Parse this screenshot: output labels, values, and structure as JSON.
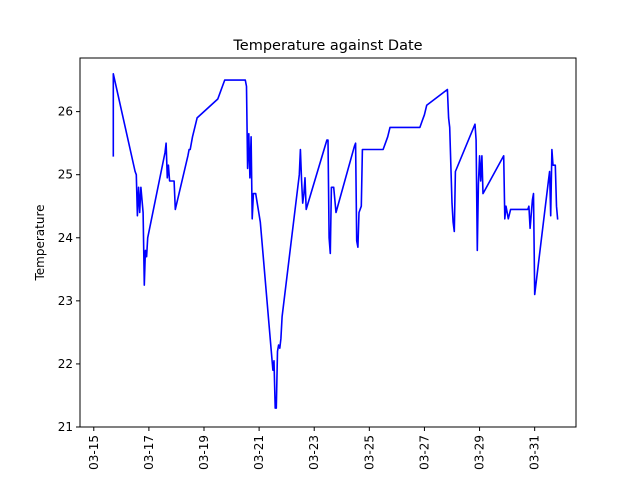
{
  "chart_data": {
    "type": "line",
    "title": "Temperature against Date",
    "xlabel": "",
    "ylabel": "Temperature",
    "x_tick_labels": [
      "03-15",
      "03-17",
      "03-19",
      "03-21",
      "03-23",
      "03-25",
      "03-27",
      "03-29",
      "03-31"
    ],
    "y_tick_labels": [
      "21",
      "22",
      "23",
      "24",
      "25",
      "26"
    ],
    "x_range": [
      "03-14 12:00",
      "04-01 12:00"
    ],
    "ylim": [
      21,
      26.85
    ],
    "grid": false,
    "line_color": "#0000ff",
    "series": [
      {
        "name": "",
        "points": [
          [
            "03-15 17:00",
            25.3
          ],
          [
            "03-15 17:00",
            26.6
          ],
          [
            "03-16 12:00",
            25.05
          ],
          [
            "03-16 13:00",
            25.0
          ],
          [
            "03-16 14:00",
            24.35
          ],
          [
            "03-16 15:00",
            24.8
          ],
          [
            "03-16 16:00",
            24.4
          ],
          [
            "03-16 17:00",
            24.8
          ],
          [
            "03-16 19:00",
            24.4
          ],
          [
            "03-16 20:00",
            23.25
          ],
          [
            "03-16 21:00",
            23.8
          ],
          [
            "03-16 22:00",
            23.7
          ],
          [
            "03-16 23:00",
            24.0
          ],
          [
            "03-17 14:00",
            25.35
          ],
          [
            "03-17 15:00",
            25.5
          ],
          [
            "03-17 16:00",
            24.95
          ],
          [
            "03-17 17:00",
            25.15
          ],
          [
            "03-17 18:00",
            24.9
          ],
          [
            "03-17 22:00",
            24.9
          ],
          [
            "03-17 23:00",
            24.45
          ],
          [
            "03-18 10:00",
            25.3
          ],
          [
            "03-18 11:00",
            25.4
          ],
          [
            "03-18 12:00",
            25.4
          ],
          [
            "03-18 14:00",
            25.6
          ],
          [
            "03-18 16:00",
            25.75
          ],
          [
            "03-18 18:00",
            25.9
          ],
          [
            "03-19 12:00",
            26.2
          ],
          [
            "03-19 14:00",
            26.3
          ],
          [
            "03-19 16:00",
            26.4
          ],
          [
            "03-19 18:00",
            26.5
          ],
          [
            "03-20 12:00",
            26.5
          ],
          [
            "03-20 13:00",
            26.4
          ],
          [
            "03-20 14:00",
            25.1
          ],
          [
            "03-20 15:00",
            25.65
          ],
          [
            "03-20 16:00",
            24.95
          ],
          [
            "03-20 17:00",
            25.6
          ],
          [
            "03-20 18:00",
            24.3
          ],
          [
            "03-20 19:00",
            24.7
          ],
          [
            "03-20 21:00",
            24.7
          ],
          [
            "03-21 01:00",
            24.25
          ],
          [
            "03-21 12:00",
            21.9
          ],
          [
            "03-21 13:00",
            22.05
          ],
          [
            "03-21 14:00",
            21.3
          ],
          [
            "03-21 15:00",
            21.3
          ],
          [
            "03-21 16:00",
            22.2
          ],
          [
            "03-21 17:00",
            22.3
          ],
          [
            "03-21 18:00",
            22.25
          ],
          [
            "03-21 19:00",
            22.4
          ],
          [
            "03-21 20:00",
            22.75
          ],
          [
            "03-22 11:00",
            25.0
          ],
          [
            "03-22 12:00",
            25.4
          ],
          [
            "03-22 13:00",
            24.9
          ],
          [
            "03-22 14:00",
            24.55
          ],
          [
            "03-22 15:00",
            24.7
          ],
          [
            "03-22 16:00",
            24.95
          ],
          [
            "03-22 17:00",
            24.45
          ],
          [
            "03-23 11:00",
            25.55
          ],
          [
            "03-23 12:00",
            25.55
          ],
          [
            "03-23 13:00",
            24.0
          ],
          [
            "03-23 14:00",
            23.75
          ],
          [
            "03-23 15:00",
            24.8
          ],
          [
            "03-23 17:00",
            24.8
          ],
          [
            "03-23 19:00",
            24.4
          ],
          [
            "03-24 11:00",
            25.45
          ],
          [
            "03-24 12:00",
            25.5
          ],
          [
            "03-24 13:00",
            23.95
          ],
          [
            "03-24 14:00",
            23.85
          ],
          [
            "03-24 15:00",
            24.4
          ],
          [
            "03-24 17:00",
            24.5
          ],
          [
            "03-24 18:00",
            25.4
          ],
          [
            "03-25 12:00",
            25.4
          ],
          [
            "03-25 14:00",
            25.5
          ],
          [
            "03-25 16:00",
            25.6
          ],
          [
            "03-25 18:00",
            25.75
          ],
          [
            "03-26 20:00",
            25.75
          ],
          [
            "03-26 22:00",
            25.85
          ],
          [
            "03-27 00:00",
            25.95
          ],
          [
            "03-27 02:00",
            26.1
          ],
          [
            "03-27 20:00",
            26.35
          ],
          [
            "03-27 21:00",
            25.9
          ],
          [
            "03-27 22:00",
            25.75
          ],
          [
            "03-28 00:00",
            24.55
          ],
          [
            "03-28 01:00",
            24.25
          ],
          [
            "03-28 02:00",
            24.1
          ],
          [
            "03-28 03:00",
            25.05
          ],
          [
            "03-28 20:00",
            25.8
          ],
          [
            "03-28 21:00",
            25.55
          ],
          [
            "03-28 22:00",
            23.8
          ],
          [
            "03-28 23:00",
            24.85
          ],
          [
            "03-29 00:00",
            25.3
          ],
          [
            "03-29 01:00",
            24.9
          ],
          [
            "03-29 02:00",
            25.3
          ],
          [
            "03-29 03:00",
            24.7
          ],
          [
            "03-29 21:00",
            25.3
          ],
          [
            "03-29 22:00",
            24.3
          ],
          [
            "03-29 23:00",
            24.5
          ],
          [
            "03-30 01:00",
            24.3
          ],
          [
            "03-30 03:00",
            24.45
          ],
          [
            "03-30 18:00",
            24.45
          ],
          [
            "03-30 19:00",
            24.5
          ],
          [
            "03-30 20:00",
            24.15
          ],
          [
            "03-30 22:00",
            24.6
          ],
          [
            "03-30 23:00",
            24.7
          ],
          [
            "03-31 00:00",
            23.1
          ],
          [
            "03-31 12:00",
            24.9
          ],
          [
            "03-31 13:00",
            25.05
          ],
          [
            "03-31 14:00",
            24.35
          ],
          [
            "03-31 15:00",
            25.4
          ],
          [
            "03-31 16:00",
            25.15
          ],
          [
            "03-31 18:00",
            25.15
          ],
          [
            "03-31 19:00",
            24.5
          ],
          [
            "03-31 20:00",
            24.3
          ]
        ]
      }
    ]
  }
}
